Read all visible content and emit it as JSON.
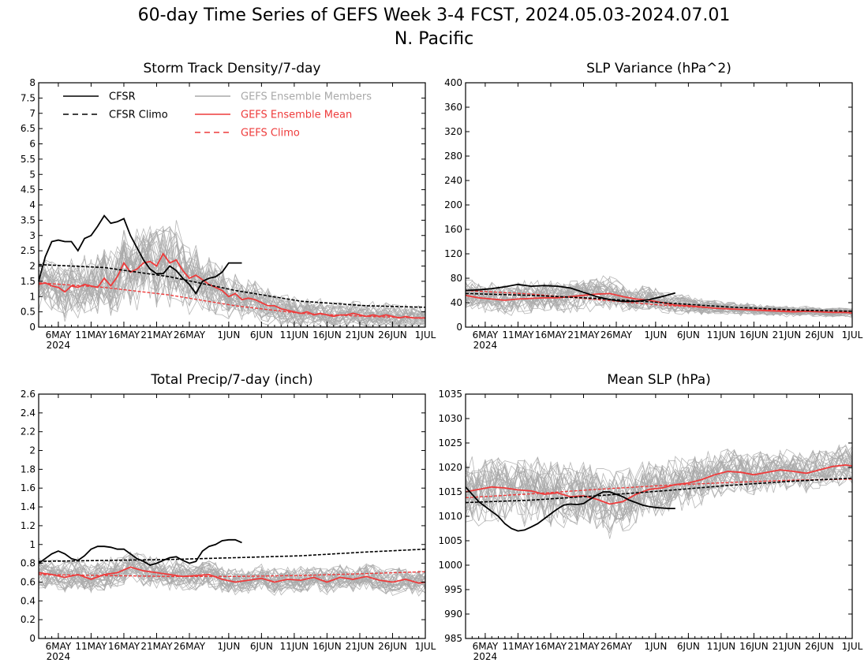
{
  "figure": {
    "title_line1": "60-day Time Series of GEFS Week 3-4 FCST, 2024.05.03-2024.07.01",
    "title_line2": "N. Pacific"
  },
  "colors": {
    "cfsr": "#000000",
    "cfsr_climo": "#000000",
    "members": "#a9a9a9",
    "ens_mean": "#ee3b3b",
    "gefs_climo": "#ee3b3b",
    "legend_members_text": "#a9a9a9",
    "legend_red_text": "#ee3b3b"
  },
  "legend": {
    "cfsr": "CFSR",
    "cfsr_climo": "CFSR Climo",
    "members": "GEFS Ensemble Members",
    "ens_mean": "GEFS Ensemble Mean",
    "gefs_climo": "GEFS Climo"
  },
  "x_axis": {
    "day_range": [
      0,
      59
    ],
    "ticks": [
      {
        "day": 3,
        "label": "6MAY",
        "sub": "2024"
      },
      {
        "day": 8,
        "label": "11MAY"
      },
      {
        "day": 13,
        "label": "16MAY"
      },
      {
        "day": 18,
        "label": "21MAY"
      },
      {
        "day": 23,
        "label": "26MAY"
      },
      {
        "day": 29,
        "label": "1JUN"
      },
      {
        "day": 34,
        "label": "6JUN"
      },
      {
        "day": 39,
        "label": "11JUN"
      },
      {
        "day": 44,
        "label": "16JUN"
      },
      {
        "day": 49,
        "label": "21JUN"
      },
      {
        "day": 54,
        "label": "26JUN"
      },
      {
        "day": 59,
        "label": "1JUL"
      }
    ]
  },
  "chart_data": [
    {
      "type": "line",
      "title": "Storm Track Density/7-day",
      "ylim": [
        0,
        8
      ],
      "yticks": [
        0,
        0.5,
        1,
        1.5,
        2,
        2.5,
        3,
        3.5,
        4,
        4.5,
        5,
        5.5,
        6,
        6.5,
        7,
        7.5,
        8
      ],
      "ytick_labels": [
        "0",
        "0.5",
        "1",
        "1.5",
        "2",
        "2.5",
        "3",
        "3.5",
        "4",
        "4.5",
        "5",
        "5.5",
        "6",
        "6.5",
        "7",
        "7.5",
        "8"
      ],
      "legend": true,
      "members_spread": {
        "x": [
          0,
          10,
          20,
          25,
          30,
          40,
          50,
          59
        ],
        "y": [
          0.6,
          0.8,
          1.0,
          0.7,
          0.5,
          0.35,
          0.3,
          0.3
        ]
      },
      "series": {
        "cfsr": {
          "x": [
            0,
            1,
            2,
            3,
            4,
            5,
            6,
            7,
            8,
            9,
            10,
            11,
            12,
            13,
            14,
            15,
            16,
            17,
            18,
            19,
            20,
            21,
            22,
            23,
            24,
            25,
            26,
            27,
            28,
            29,
            30,
            31
          ],
          "y": [
            1.5,
            2.3,
            2.8,
            2.85,
            2.8,
            2.8,
            2.5,
            2.9,
            3.0,
            3.3,
            3.65,
            3.4,
            3.45,
            3.55,
            3.0,
            2.6,
            2.2,
            1.9,
            1.75,
            1.75,
            2.0,
            1.85,
            1.6,
            1.4,
            1.1,
            1.5,
            1.6,
            1.65,
            1.8,
            2.1,
            2.1,
            2.1
          ]
        },
        "cfsr_climo": {
          "x": [
            0,
            10,
            20,
            30,
            40,
            50,
            59
          ],
          "y": [
            2.05,
            1.95,
            1.65,
            1.2,
            0.85,
            0.7,
            0.65
          ]
        },
        "ens_mean": {
          "x": [
            0,
            1,
            2,
            3,
            4,
            5,
            6,
            7,
            8,
            9,
            10,
            11,
            12,
            13,
            14,
            15,
            16,
            17,
            18,
            19,
            20,
            21,
            22,
            23,
            24,
            25,
            26,
            27,
            28,
            29,
            30,
            31,
            32,
            33,
            34,
            35,
            36,
            37,
            38,
            39,
            40,
            41,
            42,
            43,
            44,
            45,
            46,
            47,
            48,
            49,
            50,
            51,
            52,
            53,
            54,
            55,
            56,
            57,
            58,
            59
          ],
          "y": [
            1.4,
            1.45,
            1.35,
            1.3,
            1.15,
            1.35,
            1.3,
            1.4,
            1.35,
            1.3,
            1.6,
            1.35,
            1.65,
            2.1,
            1.8,
            1.9,
            2.1,
            2.15,
            2.0,
            2.4,
            2.1,
            2.2,
            1.85,
            1.6,
            1.7,
            1.55,
            1.4,
            1.3,
            1.2,
            1.0,
            1.1,
            0.9,
            0.95,
            0.9,
            0.8,
            0.7,
            0.7,
            0.6,
            0.55,
            0.5,
            0.45,
            0.5,
            0.4,
            0.45,
            0.4,
            0.35,
            0.4,
            0.4,
            0.45,
            0.4,
            0.35,
            0.4,
            0.35,
            0.4,
            0.35,
            0.3,
            0.35,
            0.3,
            0.3,
            0.3
          ]
        },
        "gefs_climo": {
          "x": [
            0,
            10,
            20,
            30,
            40,
            50,
            59
          ],
          "y": [
            1.45,
            1.3,
            1.05,
            0.7,
            0.45,
            0.35,
            0.3
          ]
        }
      }
    },
    {
      "type": "line",
      "title": "SLP Variance (hPa^2)",
      "ylim": [
        0,
        400
      ],
      "yticks": [
        0,
        40,
        80,
        120,
        160,
        200,
        240,
        280,
        320,
        360,
        400
      ],
      "ytick_labels": [
        "0",
        "40",
        "80",
        "120",
        "160",
        "200",
        "240",
        "280",
        "320",
        "360",
        "400"
      ],
      "legend": false,
      "members_spread": {
        "x": [
          0,
          10,
          20,
          30,
          40,
          50,
          59
        ],
        "y": [
          18,
          20,
          20,
          14,
          8,
          6,
          6
        ]
      },
      "series": {
        "cfsr": {
          "x": [
            0,
            2,
            4,
            6,
            8,
            10,
            12,
            14,
            16,
            18,
            20,
            22,
            24,
            26,
            28,
            30,
            32
          ],
          "y": [
            60,
            61,
            63,
            66,
            70,
            67,
            68,
            67,
            64,
            57,
            50,
            45,
            42,
            42,
            45,
            50,
            56
          ]
        },
        "cfsr_climo": {
          "x": [
            0,
            10,
            20,
            30,
            40,
            50,
            59
          ],
          "y": [
            55,
            52,
            47,
            40,
            33,
            28,
            26
          ]
        },
        "ens_mean": {
          "x": [
            0,
            2,
            4,
            6,
            8,
            10,
            12,
            14,
            16,
            18,
            20,
            22,
            24,
            26,
            28,
            30,
            32,
            34,
            36,
            38,
            40,
            42,
            44,
            46,
            48,
            50,
            52,
            54,
            56,
            58,
            59
          ],
          "y": [
            52,
            48,
            46,
            44,
            46,
            47,
            48,
            48,
            50,
            52,
            54,
            55,
            50,
            46,
            44,
            40,
            36,
            35,
            33,
            31,
            30,
            29,
            28,
            27,
            26,
            25,
            26,
            25,
            24,
            24,
            23
          ]
        },
        "gefs_climo": {
          "x": [
            0,
            10,
            20,
            30,
            40,
            50,
            59
          ],
          "y": [
            60,
            54,
            45,
            36,
            30,
            27,
            26
          ]
        }
      }
    },
    {
      "type": "line",
      "title": "Total Precip/7-day (inch)",
      "ylim": [
        0,
        2.6
      ],
      "yticks": [
        0,
        0.2,
        0.4,
        0.6,
        0.8,
        1,
        1.2,
        1.4,
        1.6,
        1.8,
        2,
        2.2,
        2.4,
        2.6
      ],
      "ytick_labels": [
        "0",
        "0.2",
        "0.4",
        "0.6",
        "0.8",
        "1",
        "1.2",
        "1.4",
        "1.6",
        "1.8",
        "2",
        "2.2",
        "2.4",
        "2.6"
      ],
      "legend": false,
      "members_spread": {
        "x": [
          0,
          10,
          20,
          30,
          40,
          50,
          59
        ],
        "y": [
          0.12,
          0.12,
          0.12,
          0.1,
          0.1,
          0.1,
          0.1
        ]
      },
      "series": {
        "cfsr": {
          "x": [
            0,
            1,
            2,
            3,
            4,
            5,
            6,
            7,
            8,
            9,
            10,
            11,
            12,
            13,
            14,
            15,
            16,
            17,
            18,
            19,
            20,
            21,
            22,
            23,
            24,
            25,
            26,
            27,
            28,
            29,
            30,
            31
          ],
          "y": [
            0.8,
            0.85,
            0.9,
            0.93,
            0.9,
            0.85,
            0.83,
            0.88,
            0.95,
            0.98,
            0.98,
            0.97,
            0.95,
            0.95,
            0.9,
            0.85,
            0.82,
            0.78,
            0.8,
            0.83,
            0.86,
            0.87,
            0.83,
            0.8,
            0.82,
            0.93,
            0.98,
            1.0,
            1.04,
            1.05,
            1.05,
            1.02
          ]
        },
        "cfsr_climo": {
          "x": [
            0,
            10,
            20,
            30,
            40,
            50,
            59
          ],
          "y": [
            0.82,
            0.83,
            0.84,
            0.86,
            0.88,
            0.92,
            0.95
          ]
        },
        "ens_mean": {
          "x": [
            0,
            2,
            4,
            6,
            8,
            10,
            12,
            14,
            16,
            18,
            20,
            22,
            24,
            26,
            28,
            30,
            32,
            34,
            36,
            38,
            40,
            42,
            44,
            46,
            48,
            50,
            52,
            54,
            56,
            58,
            59
          ],
          "y": [
            0.7,
            0.68,
            0.65,
            0.68,
            0.63,
            0.68,
            0.7,
            0.76,
            0.72,
            0.7,
            0.68,
            0.66,
            0.67,
            0.68,
            0.63,
            0.6,
            0.62,
            0.64,
            0.6,
            0.63,
            0.62,
            0.65,
            0.6,
            0.65,
            0.63,
            0.66,
            0.62,
            0.6,
            0.63,
            0.59,
            0.6
          ]
        },
        "gefs_climo": {
          "x": [
            0,
            10,
            20,
            30,
            40,
            50,
            59
          ],
          "y": [
            0.68,
            0.67,
            0.66,
            0.66,
            0.67,
            0.69,
            0.71
          ]
        }
      }
    },
    {
      "type": "line",
      "title": "Mean SLP (hPa)",
      "ylim": [
        985,
        1035
      ],
      "yticks": [
        985,
        990,
        995,
        1000,
        1005,
        1010,
        1015,
        1020,
        1025,
        1030,
        1035
      ],
      "ytick_labels": [
        "985",
        "990",
        "995",
        "1000",
        "1005",
        "1010",
        "1015",
        "1020",
        "1025",
        "1030",
        "1035"
      ],
      "legend": false,
      "members_spread": {
        "x": [
          0,
          10,
          20,
          30,
          40,
          50,
          59
        ],
        "y": [
          5,
          5,
          5,
          4,
          3.5,
          3,
          3
        ]
      },
      "series": {
        "cfsr": {
          "x": [
            0,
            1,
            2,
            3,
            4,
            5,
            6,
            7,
            8,
            9,
            10,
            11,
            12,
            13,
            14,
            15,
            16,
            17,
            18,
            19,
            20,
            21,
            22,
            23,
            24,
            25,
            26,
            27,
            28,
            29,
            30,
            31,
            32
          ],
          "y": [
            1016,
            1014.5,
            1013,
            1012,
            1011,
            1010,
            1008.5,
            1007.5,
            1007,
            1007.2,
            1007.8,
            1008.5,
            1009.5,
            1010.5,
            1011.5,
            1012.3,
            1012.5,
            1012.4,
            1012.6,
            1013.5,
            1014.3,
            1015,
            1015,
            1014.5,
            1014,
            1013.3,
            1012.8,
            1012.3,
            1012,
            1011.8,
            1011.7,
            1011.6,
            1011.6
          ]
        },
        "cfsr_climo": {
          "x": [
            0,
            10,
            20,
            30,
            40,
            50,
            59
          ],
          "y": [
            1012.8,
            1013.3,
            1014.2,
            1015.2,
            1016.3,
            1017.2,
            1017.8
          ]
        },
        "ens_mean": {
          "x": [
            0,
            2,
            4,
            6,
            8,
            10,
            12,
            14,
            16,
            18,
            20,
            22,
            24,
            26,
            28,
            30,
            32,
            34,
            36,
            38,
            40,
            42,
            44,
            46,
            48,
            50,
            52,
            54,
            56,
            58,
            59
          ],
          "y": [
            1015,
            1015.5,
            1016,
            1015.8,
            1015.4,
            1015.2,
            1014.5,
            1014.8,
            1014,
            1014.2,
            1013.5,
            1012.5,
            1013,
            1014.5,
            1015.5,
            1015.8,
            1016.5,
            1016.8,
            1017.5,
            1018.5,
            1019.2,
            1019,
            1018.5,
            1019,
            1019.5,
            1019.2,
            1018.8,
            1019.5,
            1020.2,
            1020.5,
            1020.3
          ]
        },
        "gefs_climo": {
          "x": [
            0,
            10,
            20,
            30,
            40,
            50,
            59
          ],
          "y": [
            1013.8,
            1014.6,
            1015.5,
            1016.3,
            1016.9,
            1017.4,
            1017.6
          ]
        }
      }
    }
  ]
}
